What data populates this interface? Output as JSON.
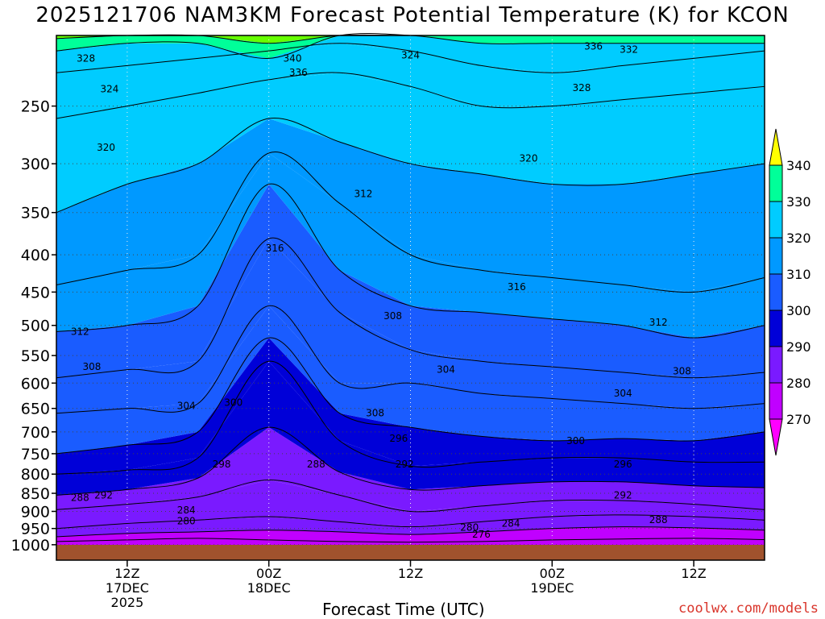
{
  "title": "2025121706 NAM3KM Forecast Potential Temperature (K) for KCON",
  "credit": "coolwx.com/models",
  "chart_data": {
    "type": "heatmap",
    "title": "2025121706 NAM3KM Forecast Potential Temperature (K) for KCON",
    "xlabel": "Forecast Time (UTC)",
    "ylabel": "",
    "y_axis": "pressure (hPa), log-scaled, inverted",
    "ylim": [
      1000,
      200
    ],
    "y_ticks": [
      250,
      300,
      350,
      400,
      450,
      500,
      550,
      600,
      650,
      700,
      750,
      800,
      850,
      900,
      950,
      1000
    ],
    "x_ticks": [
      {
        "hour": 6,
        "label": [
          "12Z",
          "17DEC",
          "2025"
        ]
      },
      {
        "hour": 18,
        "label": [
          "00Z",
          "18DEC"
        ]
      },
      {
        "hour": 30,
        "label": [
          "12Z"
        ]
      },
      {
        "hour": 42,
        "label": [
          "00Z",
          "19DEC"
        ]
      },
      {
        "hour": 54,
        "label": [
          "12Z"
        ]
      }
    ],
    "xlim": [
      0,
      60
    ],
    "colorbar": {
      "levels": [
        270,
        280,
        290,
        300,
        310,
        320,
        330,
        340
      ],
      "colors": [
        "#ff00ff",
        "#c000ff",
        "#7a1aff",
        "#0000d8",
        "#1a5cff",
        "#0099ff",
        "#00ccff",
        "#00ff99",
        "#66ff00",
        "#ffff00"
      ]
    },
    "contour_interval": 4,
    "isentropes": [
      {
        "theta": 276,
        "p": [
          990,
          985,
          980,
          985,
          990,
          992,
          990,
          985,
          982,
          980,
          984
        ]
      },
      {
        "theta": 280,
        "p": [
          975,
          965,
          960,
          955,
          960,
          968,
          960,
          950,
          945,
          948,
          955
        ]
      },
      {
        "theta": 284,
        "p": [
          950,
          935,
          925,
          915,
          930,
          945,
          930,
          915,
          910,
          915,
          925
        ]
      },
      {
        "theta": 288,
        "p": [
          895,
          880,
          860,
          815,
          855,
          900,
          885,
          870,
          870,
          880,
          895
        ]
      },
      {
        "theta": 292,
        "p": [
          855,
          840,
          810,
          690,
          795,
          840,
          830,
          820,
          820,
          830,
          835
        ]
      },
      {
        "theta": 296,
        "p": [
          800,
          790,
          760,
          560,
          720,
          780,
          770,
          760,
          760,
          770,
          770
        ]
      },
      {
        "theta": 300,
        "p": [
          750,
          730,
          700,
          520,
          660,
          690,
          710,
          720,
          715,
          720,
          700
        ]
      },
      {
        "theta": 304,
        "p": [
          660,
          650,
          640,
          470,
          600,
          600,
          620,
          630,
          640,
          650,
          640
        ]
      },
      {
        "theta": 308,
        "p": [
          590,
          575,
          560,
          380,
          480,
          540,
          560,
          570,
          580,
          590,
          580
        ]
      },
      {
        "theta": 312,
        "p": [
          510,
          500,
          470,
          320,
          420,
          470,
          480,
          490,
          500,
          520,
          500
        ]
      },
      {
        "theta": 316,
        "p": [
          440,
          420,
          400,
          290,
          340,
          400,
          420,
          430,
          440,
          450,
          430
        ]
      },
      {
        "theta": 320,
        "p": [
          350,
          320,
          300,
          260,
          280,
          300,
          310,
          320,
          320,
          310,
          300
        ]
      },
      {
        "theta": 324,
        "p": [
          260,
          250,
          240,
          230,
          225,
          235,
          250,
          250,
          245,
          240,
          235
        ]
      },
      {
        "theta": 328,
        "p": [
          225,
          220,
          215,
          210,
          205,
          210,
          220,
          225,
          220,
          215,
          210
        ]
      },
      {
        "theta": 332,
        "p": [
          210,
          205,
          205,
          215,
          200,
          200,
          205,
          205,
          205,
          205,
          205
        ]
      },
      {
        "theta": 336,
        "p": [
          202,
          200,
          200,
          205,
          200,
          200,
          200,
          200,
          200,
          200,
          200
        ]
      }
    ],
    "isentrope_hours": [
      0,
      6,
      12,
      18,
      24,
      30,
      36,
      42,
      48,
      54,
      60
    ],
    "contour_labels": [
      {
        "text": "328",
        "hour": 2.5,
        "p": 215
      },
      {
        "text": "340",
        "hour": 20,
        "p": 215
      },
      {
        "text": "336",
        "hour": 20.5,
        "p": 225
      },
      {
        "text": "324",
        "hour": 30,
        "p": 213
      },
      {
        "text": "336",
        "hour": 45.5,
        "p": 207
      },
      {
        "text": "332",
        "hour": 48.5,
        "p": 209
      },
      {
        "text": "324",
        "hour": 4.5,
        "p": 237
      },
      {
        "text": "328",
        "hour": 44.5,
        "p": 236
      },
      {
        "text": "320",
        "hour": 4.2,
        "p": 285
      },
      {
        "text": "320",
        "hour": 40,
        "p": 295
      },
      {
        "text": "312",
        "hour": 26,
        "p": 330
      },
      {
        "text": "316",
        "hour": 18.5,
        "p": 392
      },
      {
        "text": "316",
        "hour": 39,
        "p": 443
      },
      {
        "text": "308",
        "hour": 28.5,
        "p": 485
      },
      {
        "text": "312",
        "hour": 2,
        "p": 510
      },
      {
        "text": "312",
        "hour": 51,
        "p": 495
      },
      {
        "text": "308",
        "hour": 3,
        "p": 570
      },
      {
        "text": "304",
        "hour": 33,
        "p": 575
      },
      {
        "text": "308",
        "hour": 53,
        "p": 578
      },
      {
        "text": "304",
        "hour": 11,
        "p": 645
      },
      {
        "text": "300",
        "hour": 15,
        "p": 638
      },
      {
        "text": "308",
        "hour": 27,
        "p": 660
      },
      {
        "text": "304",
        "hour": 48,
        "p": 620
      },
      {
        "text": "296",
        "hour": 29,
        "p": 715
      },
      {
        "text": "300",
        "hour": 44,
        "p": 720
      },
      {
        "text": "298",
        "hour": 14,
        "p": 775
      },
      {
        "text": "288",
        "hour": 22,
        "p": 775
      },
      {
        "text": "292",
        "hour": 29.5,
        "p": 775
      },
      {
        "text": "296",
        "hour": 48,
        "p": 775
      },
      {
        "text": "288",
        "hour": 2,
        "p": 862
      },
      {
        "text": "292",
        "hour": 4,
        "p": 855
      },
      {
        "text": "292",
        "hour": 48,
        "p": 855
      },
      {
        "text": "284",
        "hour": 11,
        "p": 897
      },
      {
        "text": "280",
        "hour": 11,
        "p": 928
      },
      {
        "text": "288",
        "hour": 51,
        "p": 925
      },
      {
        "text": "284",
        "hour": 38.5,
        "p": 935
      },
      {
        "text": "280",
        "hour": 35,
        "p": 947
      },
      {
        "text": "276",
        "hour": 36,
        "p": 968
      }
    ]
  }
}
